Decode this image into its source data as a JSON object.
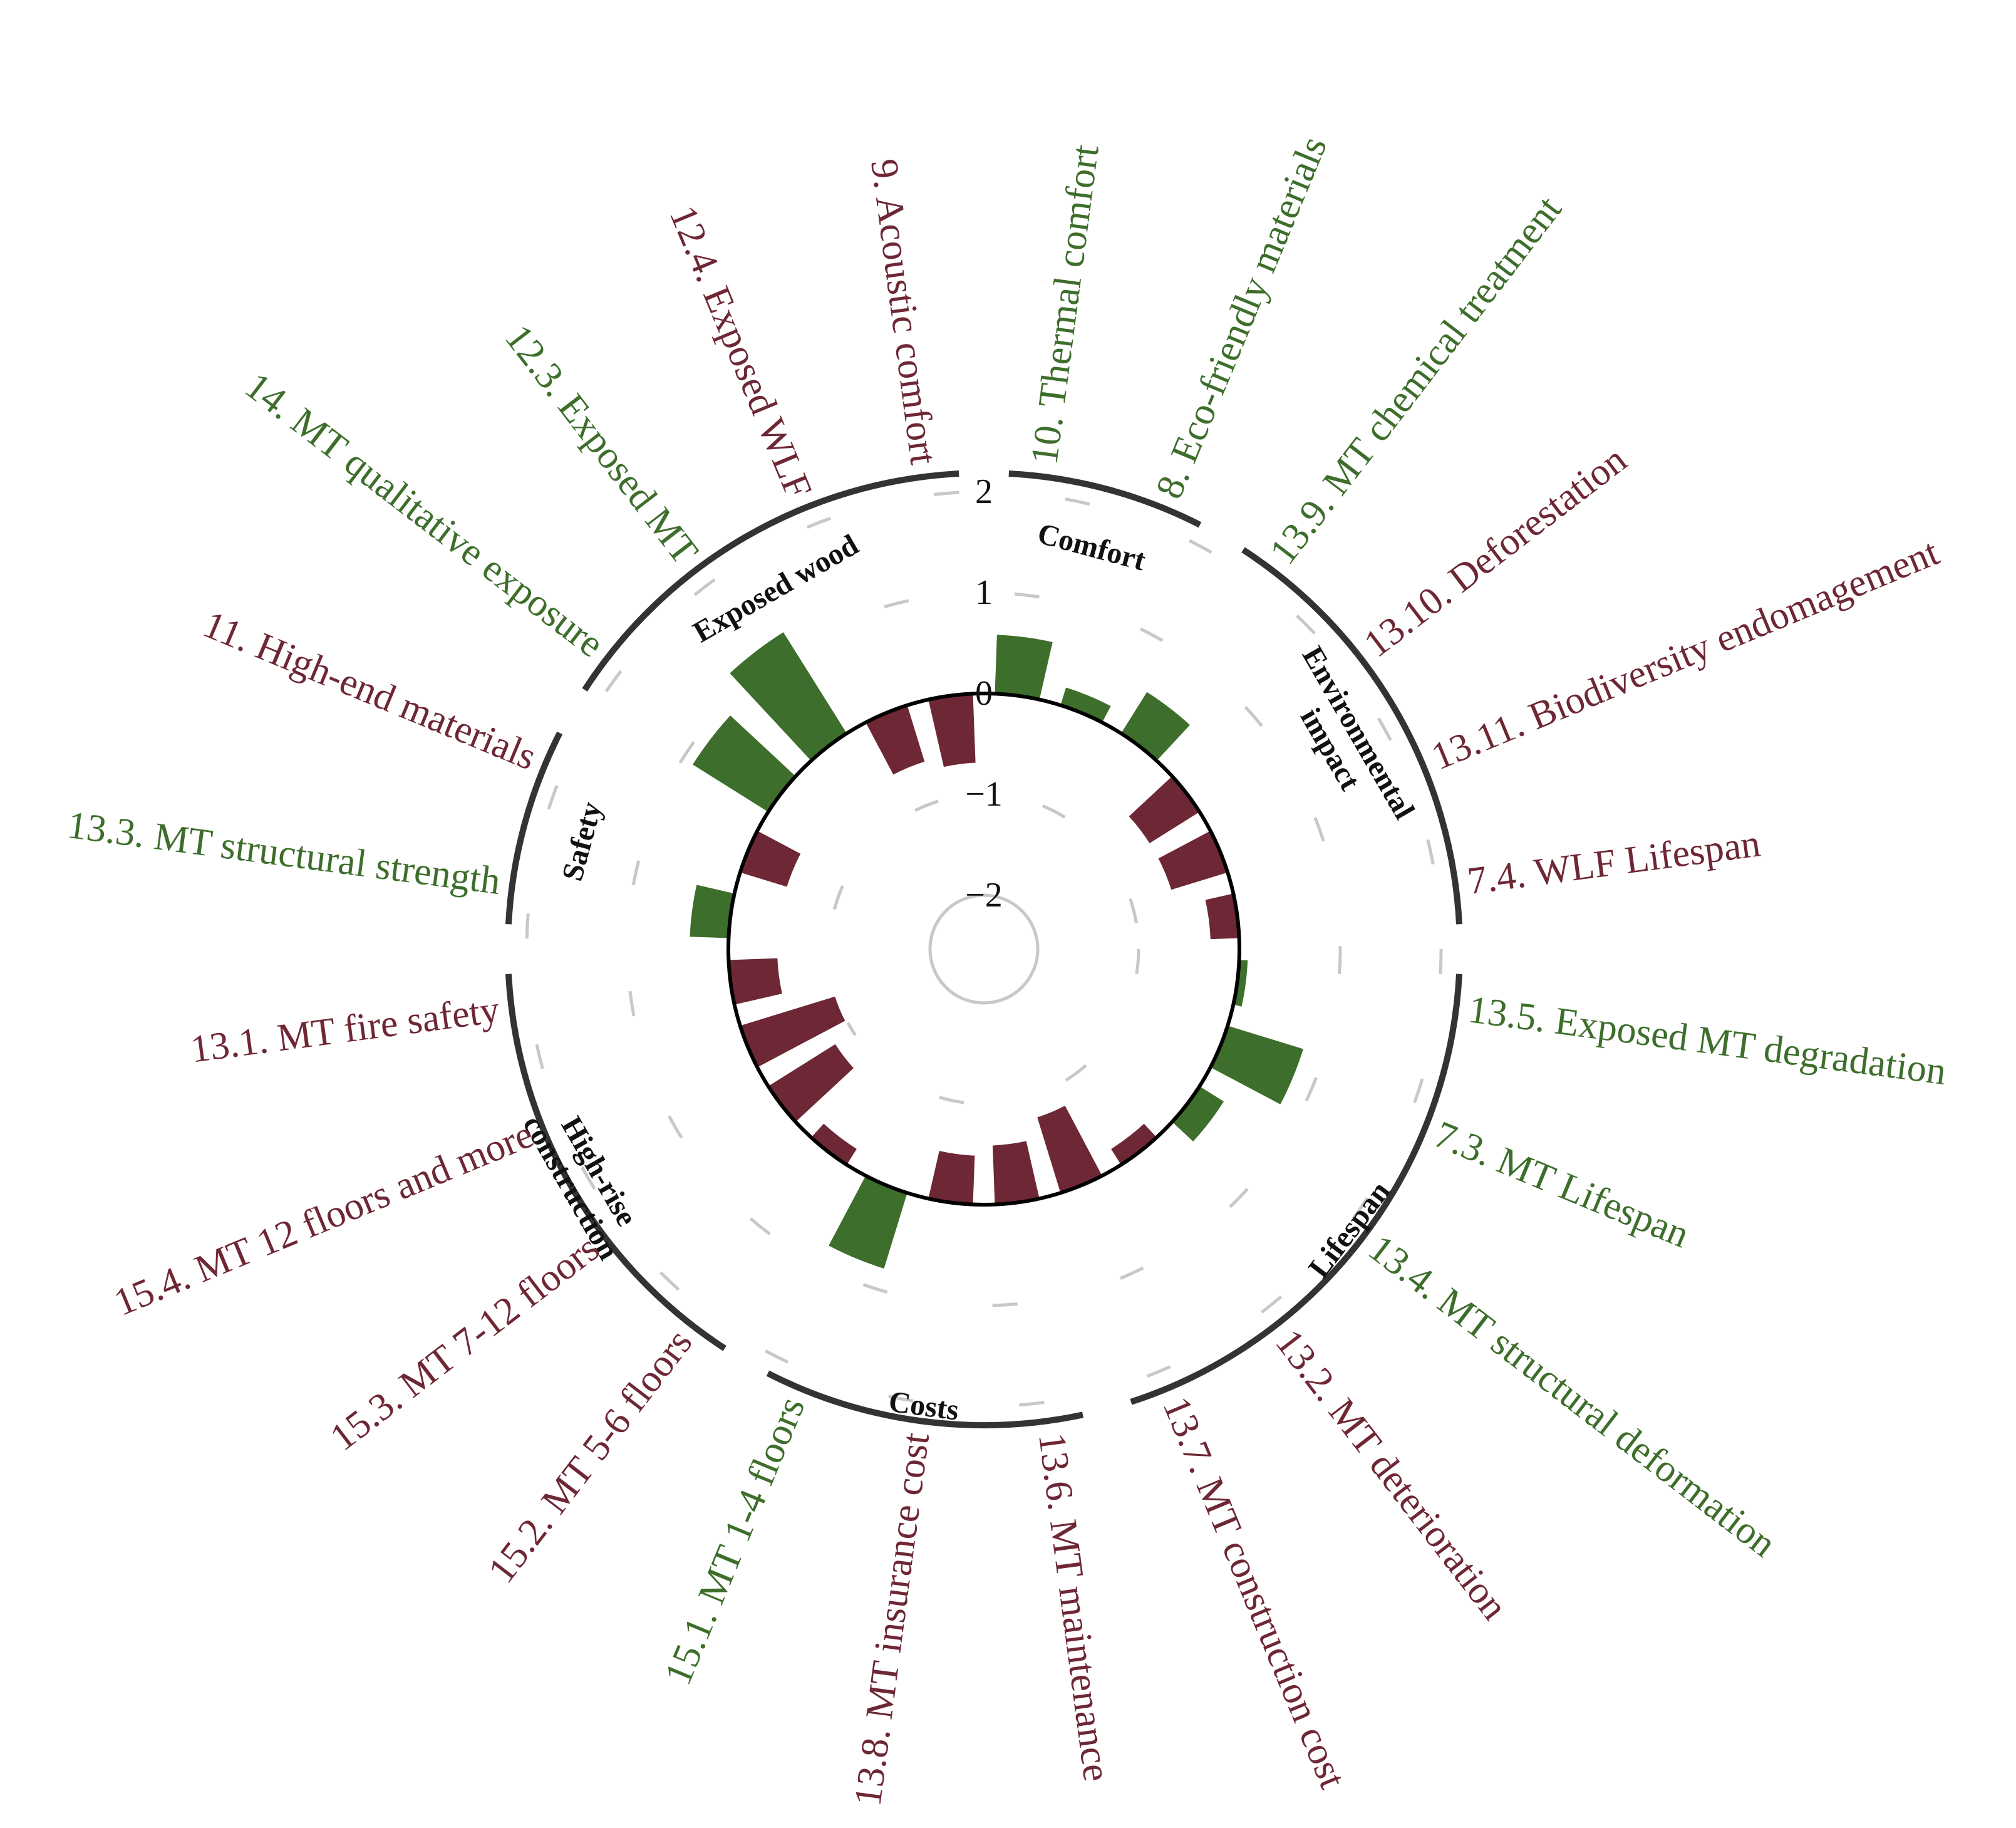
{
  "chart_data": {
    "type": "bar",
    "layout": "circular",
    "colors": {
      "positive": "#3d6e2b",
      "negative": "#6e2734"
    },
    "radial_ticks": [
      "2",
      "1",
      "0",
      "−1",
      "−2"
    ],
    "radial_range": [
      -2.5,
      2
    ],
    "groups": [
      {
        "name": "Comfort",
        "items": [
          "9",
          "10"
        ]
      },
      {
        "name": "Environmental impact",
        "lines": [
          "Environmental",
          "impact"
        ],
        "items": [
          "8",
          "13.9",
          "13.10",
          "13.11"
        ]
      },
      {
        "name": "Lifespan",
        "items": [
          "7.4",
          "13.5",
          "7.3",
          "13.4",
          "13.2"
        ]
      },
      {
        "name": "Costs",
        "items": [
          "13.7",
          "13.6",
          "13.8"
        ]
      },
      {
        "name": "High-rise construction",
        "lines": [
          "High-rise",
          "construction"
        ],
        "items": [
          "15.1",
          "15.2",
          "15.3",
          "15.4"
        ]
      },
      {
        "name": "Safety",
        "items": [
          "13.1",
          "13.3"
        ]
      },
      {
        "name": "Exposed wood",
        "items": [
          "11",
          "14",
          "12.3",
          "12.4"
        ]
      }
    ],
    "categories": [
      "10. Thermal comfort",
      "8. Eco-friendly materials",
      "13.9. MT chemical treatment",
      "13.10. Deforestation",
      "13.11. Biodiversity endomagement",
      "7.4. WLF Lifespan",
      "13.5. Exposed MT degradation",
      "7.3. MT Lifespan",
      "13.4. MT structural deformation",
      "13.2. MT deterioration",
      "13.7. MT construction cost",
      "13.6. MT maintenance",
      "13.8. MT insurance cost",
      "15.1. MT 1-4 floors",
      "15.2. MT 5-6 floors",
      "15.3. MT 7-12 floors",
      "15.4. MT 12 floors and more",
      "13.1. MT fire safety",
      "13.3. MT structural strength",
      "11. High-end materials",
      "14. MT qualitative exposure",
      "12.3. Exposed MT",
      "12.4. Exposed WLF",
      "9. Acoustic comfort"
    ],
    "values": [
      0.6,
      0.2,
      0.5,
      -0.6,
      -0.6,
      -0.3,
      0.1,
      0.8,
      0.3,
      -0.2,
      -0.8,
      -0.6,
      -0.5,
      0.8,
      -0.2,
      -0.8,
      -1.0,
      -0.5,
      0.4,
      -0.5,
      0.9,
      1.2,
      -0.6,
      -0.7
    ],
    "labels": [
      {
        "text": "10. Thermal comfort",
        "color": "#3d6e2b"
      },
      {
        "text": "8. Eco-friendly materials",
        "color": "#3d6e2b"
      },
      {
        "text": "13.9. MT chemical treatment",
        "color": "#3d6e2b"
      },
      {
        "text": "13.10. Deforestation",
        "color": "#6e2734"
      },
      {
        "text": "13.11. Biodiversity endomagement",
        "color": "#6e2734"
      },
      {
        "text": "7.4. WLF Lifespan",
        "color": "#6e2734"
      },
      {
        "text": "13.5. Exposed MT degradation",
        "color": "#3d6e2b"
      },
      {
        "text": "7.3. MT Lifespan",
        "color": "#3d6e2b"
      },
      {
        "text": "13.4. MT structural deformation",
        "color": "#3d6e2b"
      },
      {
        "text": "13.2. MT deterioration",
        "color": "#6e2734"
      },
      {
        "text": "13.7. MT construction cost",
        "color": "#6e2734"
      },
      {
        "text": "13.6. MT maintenance",
        "color": "#6e2734"
      },
      {
        "text": "13.8. MT insurance cost",
        "color": "#6e2734"
      },
      {
        "text": "15.1. MT 1-4 floors",
        "color": "#3d6e2b"
      },
      {
        "text": "15.2. MT 5-6 floors",
        "color": "#6e2734"
      },
      {
        "text": "15.3. MT 7-12 floors",
        "color": "#6e2734"
      },
      {
        "text": "15.4. MT 12 floors and more",
        "color": "#6e2734"
      },
      {
        "text": "13.1. MT fire safety",
        "color": "#6e2734"
      },
      {
        "text": "13.3. MT structural strength",
        "color": "#3d6e2b"
      },
      {
        "text": "11. High-end materials",
        "color": "#6e2734"
      },
      {
        "text": "14. MT qualitative exposure",
        "color": "#3d6e2b"
      },
      {
        "text": "12.3. Exposed MT",
        "color": "#3d6e2b"
      },
      {
        "text": "12.4. Exposed WLF",
        "color": "#6e2734"
      },
      {
        "text": "9. Acoustic comfort",
        "color": "#6e2734"
      }
    ],
    "grid": "dashed-circles"
  }
}
